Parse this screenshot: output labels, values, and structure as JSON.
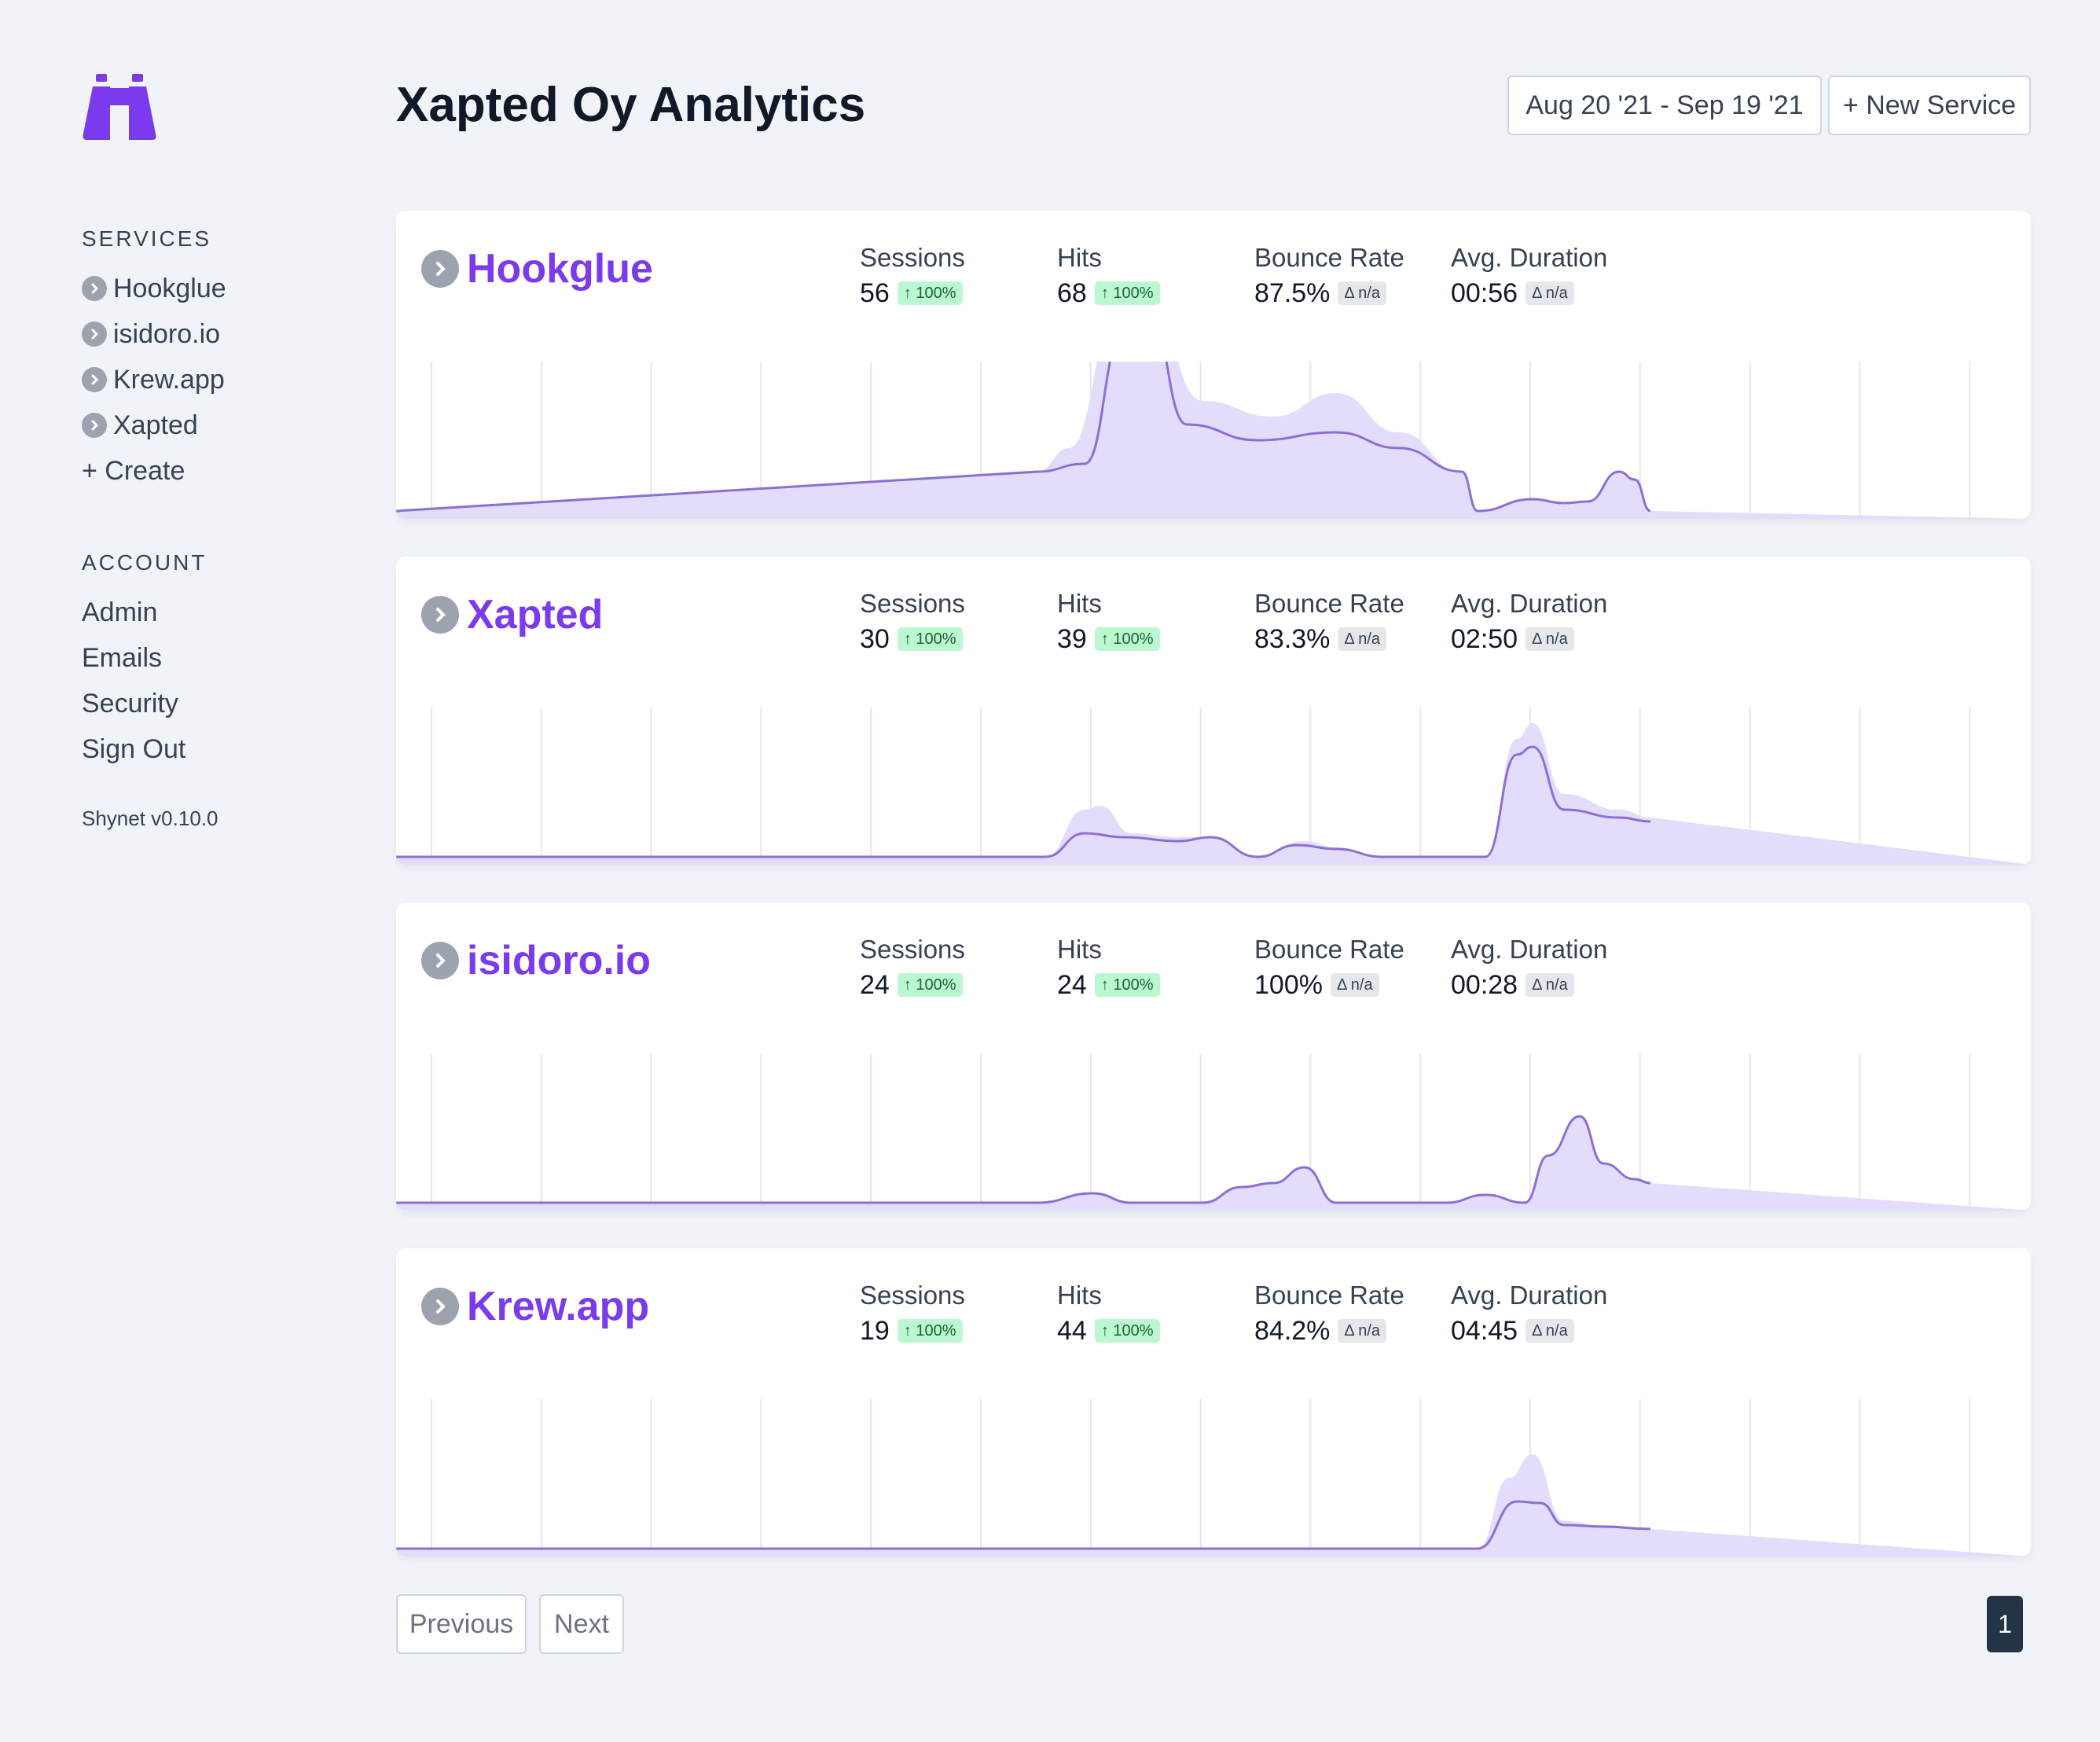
{
  "header": {
    "title": "Xapted Oy Analytics",
    "date_range": "Aug 20 '21 - Sep 19 '21",
    "new_service_label": "+ New Service"
  },
  "sidebar": {
    "services_heading": "SERVICES",
    "services": [
      {
        "label": "Hookglue"
      },
      {
        "label": "isidoro.io"
      },
      {
        "label": "Krew.app"
      },
      {
        "label": "Xapted"
      }
    ],
    "create_label": "+ Create",
    "account_heading": "ACCOUNT",
    "account": [
      {
        "label": "Admin"
      },
      {
        "label": "Emails"
      },
      {
        "label": "Security"
      },
      {
        "label": "Sign Out"
      }
    ],
    "version": "Shynet v0.10.0"
  },
  "stat_labels": {
    "sessions": "Sessions",
    "hits": "Hits",
    "bounce": "Bounce Rate",
    "duration": "Avg. Duration"
  },
  "colors": {
    "accent": "#7c3aed",
    "line": "#8b6fd6",
    "area": "#e4dcfb",
    "up_badge": "#bbf7d0",
    "na_badge": "#e5e7eb"
  },
  "services": [
    {
      "name": "Hookglue",
      "sessions": "56",
      "sessions_delta": "↑ 100%",
      "hits": "68",
      "hits_delta": "↑ 100%",
      "bounce": "87.5%",
      "bounce_delta": "Δ n/a",
      "duration": "00:56",
      "duration_delta": "Δ n/a"
    },
    {
      "name": "Xapted",
      "sessions": "30",
      "sessions_delta": "↑ 100%",
      "hits": "39",
      "hits_delta": "↑ 100%",
      "bounce": "83.3%",
      "bounce_delta": "Δ n/a",
      "duration": "02:50",
      "duration_delta": "Δ n/a"
    },
    {
      "name": "isidoro.io",
      "sessions": "24",
      "sessions_delta": "↑ 100%",
      "hits": "24",
      "hits_delta": "↑ 100%",
      "bounce": "100%",
      "bounce_delta": "Δ n/a",
      "duration": "00:28",
      "duration_delta": "Δ n/a"
    },
    {
      "name": "Krew.app",
      "sessions": "19",
      "sessions_delta": "↑ 100%",
      "hits": "44",
      "hits_delta": "↑ 100%",
      "bounce": "84.2%",
      "bounce_delta": "Δ n/a",
      "duration": "04:45",
      "duration_delta": "Δ n/a"
    }
  ],
  "pagination": {
    "previous": "Previous",
    "next": "Next",
    "current_page": "1"
  }
}
